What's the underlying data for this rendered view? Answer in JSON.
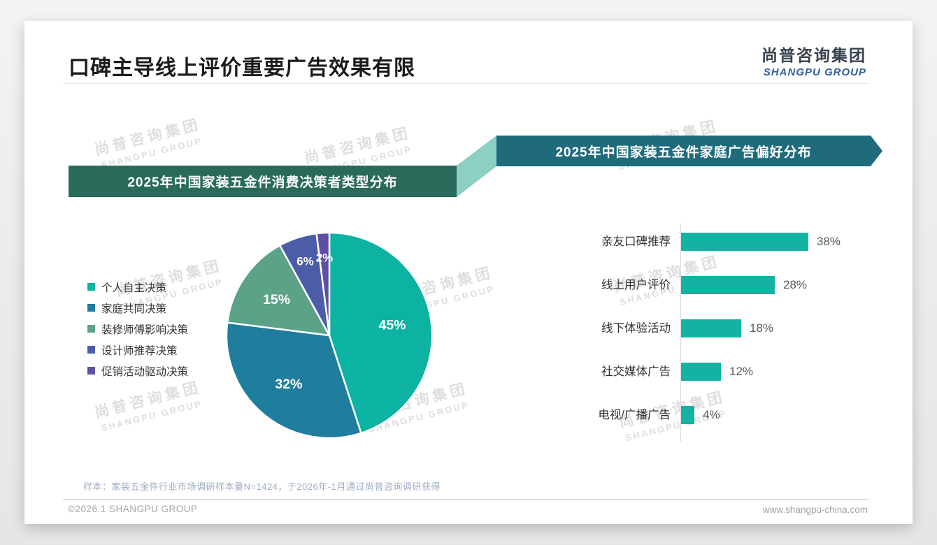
{
  "slide": {
    "title": "口碑主导线上评价重要广告效果有限",
    "logo": {
      "cn": "尚普咨询集团",
      "en": "SHANGPU GROUP"
    },
    "watermark": {
      "line1": "尚普咨询集团",
      "line2": "SHANGPU GROUP"
    },
    "footnote": "样本：家装五金件行业市场调研样本量N=1424，于2026年-1月通过尚普咨询调研获得",
    "footer": {
      "copyright": "©2026.1 SHANGPU GROUP",
      "website": "www.shangpu-china.com"
    }
  },
  "colors": {
    "banner_left_bg": "#2a6a5b",
    "banner_right_bg": "#1f6b7c",
    "connector": "#8bd0c2",
    "logo_en_blue": "#2e5f9d",
    "accent_teal": "#14b2a3"
  },
  "chart_data": [
    {
      "type": "pie",
      "title": "2025年中国家装五金件消费决策者类型分布",
      "labels": [
        "个人自主决策",
        "家庭共同决策",
        "装修师傅影响决策",
        "设计师推荐决策",
        "促销活动驱动决策"
      ],
      "values": [
        45,
        32,
        15,
        6,
        2
      ],
      "label_suffix": "%",
      "colors": [
        "#0cb2a2",
        "#1f7e9d",
        "#5ba287",
        "#4b5ca8",
        "#5d50a2"
      ],
      "legend_position": "left",
      "start_angle_deg": 0,
      "direction": "clockwise",
      "slice_border_color": "#ffffff"
    },
    {
      "type": "bar",
      "title": "2025年中国家装五金件家庭广告偏好分布",
      "orientation": "horizontal",
      "categories": [
        "亲友口碑推荐",
        "线上用户评价",
        "线下体验活动",
        "社交媒体广告",
        "电视/广播广告"
      ],
      "values": [
        38,
        28,
        18,
        12,
        4
      ],
      "value_suffix": "%",
      "bar_color": "#14b2a3",
      "xlim": [
        0,
        40
      ],
      "grid": false,
      "axis_line_color": "#d9d9d9"
    }
  ]
}
